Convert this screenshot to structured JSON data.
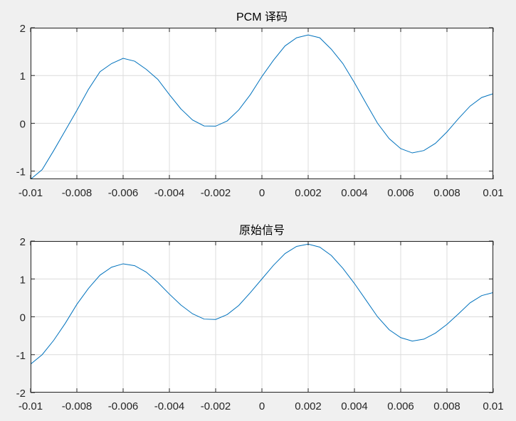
{
  "chart_data": [
    {
      "type": "line",
      "title": "PCM 译码",
      "xlim": [
        -0.01,
        0.01
      ],
      "ylim": [
        -1.17,
        2
      ],
      "grid": true,
      "line_color": "#0072BD",
      "xticks": [
        "-0.01",
        "-0.008",
        "-0.006",
        "-0.004",
        "-0.002",
        "0",
        "0.002",
        "0.004",
        "0.006",
        "0.008",
        "0.01"
      ],
      "xtick_values": [
        -0.01,
        -0.008,
        -0.006,
        -0.004,
        -0.002,
        0,
        0.002,
        0.004,
        0.006,
        0.008,
        0.01
      ],
      "yticks": [
        "-1",
        "0",
        "1",
        "2"
      ],
      "ytick_values": [
        -1,
        0,
        1,
        2
      ],
      "x": [
        -0.01,
        -0.0095,
        -0.009,
        -0.0085,
        -0.008,
        -0.0075,
        -0.007,
        -0.0065,
        -0.006,
        -0.0055,
        -0.005,
        -0.0045,
        -0.004,
        -0.0035,
        -0.003,
        -0.0025,
        -0.002,
        -0.0015,
        -0.001,
        -0.0005,
        0,
        0.0005,
        0.001,
        0.0015,
        0.002,
        0.0025,
        0.003,
        0.0035,
        0.004,
        0.0045,
        0.005,
        0.0055,
        0.006,
        0.0065,
        0.007,
        0.0075,
        0.008,
        0.0085,
        0.009,
        0.0095,
        0.01
      ],
      "y": [
        -1.17,
        -0.97,
        -0.57,
        -0.15,
        0.27,
        0.71,
        1.08,
        1.25,
        1.36,
        1.3,
        1.13,
        0.92,
        0.6,
        0.3,
        0.07,
        -0.055,
        -0.06,
        0.05,
        0.28,
        0.6,
        0.98,
        1.32,
        1.62,
        1.79,
        1.85,
        1.79,
        1.55,
        1.25,
        0.85,
        0.42,
        0.0,
        -0.32,
        -0.53,
        -0.62,
        -0.57,
        -0.42,
        -0.18,
        0.1,
        0.36,
        0.54,
        0.62
      ]
    },
    {
      "type": "line",
      "title": "原始信号",
      "xlim": [
        -0.01,
        0.01
      ],
      "ylim": [
        -2,
        2
      ],
      "grid": true,
      "line_color": "#0072BD",
      "xticks": [
        "-0.01",
        "-0.008",
        "-0.006",
        "-0.004",
        "-0.002",
        "0",
        "0.002",
        "0.004",
        "0.006",
        "0.008",
        "0.01"
      ],
      "xtick_values": [
        -0.01,
        -0.008,
        -0.006,
        -0.004,
        -0.002,
        0,
        0.002,
        0.004,
        0.006,
        0.008,
        0.01
      ],
      "yticks": [
        "-2",
        "-1",
        "0",
        "1",
        "2"
      ],
      "ytick_values": [
        -2,
        -1,
        0,
        1,
        2
      ],
      "x": [
        -0.01,
        -0.0095,
        -0.009,
        -0.0085,
        -0.008,
        -0.0075,
        -0.007,
        -0.0065,
        -0.006,
        -0.0055,
        -0.005,
        -0.0045,
        -0.004,
        -0.0035,
        -0.003,
        -0.0025,
        -0.002,
        -0.0015,
        -0.001,
        -0.0005,
        0,
        0.0005,
        0.001,
        0.0015,
        0.002,
        0.0025,
        0.003,
        0.0035,
        0.004,
        0.0045,
        0.005,
        0.0055,
        0.006,
        0.0065,
        0.007,
        0.0075,
        0.008,
        0.0085,
        0.009,
        0.0095,
        0.01
      ],
      "y": [
        -1.25,
        -1.0,
        -0.62,
        -0.17,
        0.33,
        0.75,
        1.1,
        1.31,
        1.4,
        1.35,
        1.18,
        0.91,
        0.6,
        0.31,
        0.08,
        -0.06,
        -0.07,
        0.06,
        0.3,
        0.64,
        1.0,
        1.36,
        1.67,
        1.86,
        1.92,
        1.84,
        1.62,
        1.28,
        0.88,
        0.44,
        0.0,
        -0.34,
        -0.55,
        -0.64,
        -0.59,
        -0.43,
        -0.2,
        0.08,
        0.37,
        0.56,
        0.64
      ]
    }
  ]
}
